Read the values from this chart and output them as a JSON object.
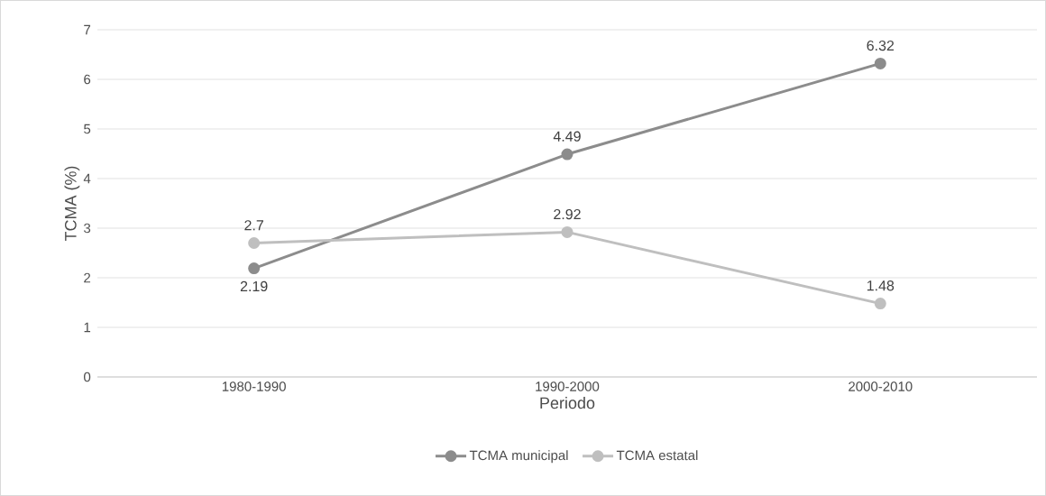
{
  "chart_data": {
    "type": "line",
    "xlabel": "Periodo",
    "ylabel": "TCMA (%)",
    "categories": [
      "1980-1990",
      "1990-2000",
      "2000-2010"
    ],
    "series": [
      {
        "name": "TCMA municipal",
        "color": "#8c8c8c",
        "values": [
          2.19,
          4.49,
          6.32
        ]
      },
      {
        "name": "TCMA estatal",
        "color": "#bfbfbf",
        "values": [
          2.7,
          2.92,
          1.48
        ]
      }
    ],
    "ylim": [
      0,
      7
    ],
    "yticks": [
      0,
      1,
      2,
      3,
      4,
      5,
      6,
      7
    ],
    "grid": "y",
    "legend": "bottom",
    "marker": "circle",
    "line_style": "solid",
    "data_labels": true
  }
}
